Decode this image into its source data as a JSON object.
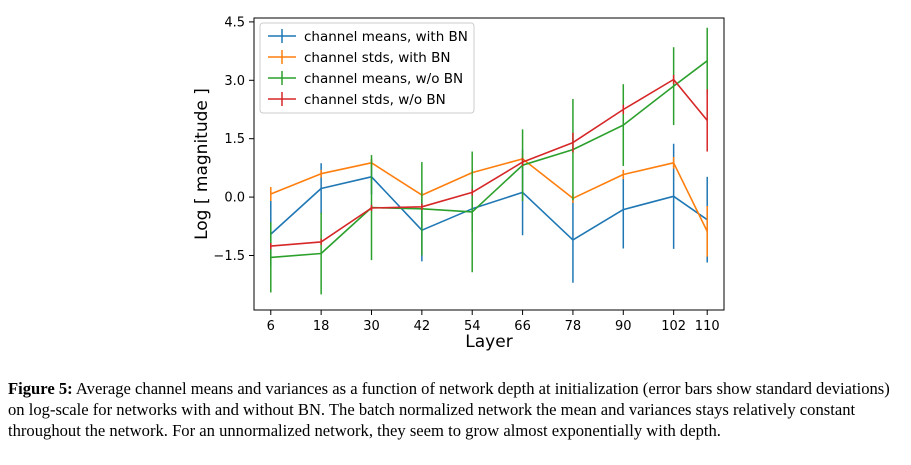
{
  "chart_data": {
    "type": "line",
    "title": "",
    "xlabel": "Layer",
    "ylabel": "Log [ magnitude ]",
    "categories": [
      "6",
      "18",
      "30",
      "42",
      "54",
      "66",
      "78",
      "90",
      "102",
      "110"
    ],
    "x": [
      6,
      18,
      30,
      42,
      54,
      66,
      78,
      90,
      102,
      110
    ],
    "xlim": [
      2,
      114
    ],
    "ylim": [
      -2.9,
      4.6
    ],
    "yticks": [
      -1.5,
      0.0,
      1.5,
      3.0,
      4.5
    ],
    "ytick_labels": [
      "−1.5",
      "0.0",
      "1.5",
      "3.0",
      "4.5"
    ],
    "grid": false,
    "legend_position": "top-left",
    "series": [
      {
        "name": "channel means, with BN",
        "color": "#1f77b4",
        "values": [
          -0.95,
          0.22,
          0.52,
          -0.85,
          -0.3,
          0.12,
          -1.1,
          -0.32,
          0.02,
          -0.58
        ],
        "errors": [
          0.85,
          0.65,
          0.45,
          0.8,
          0.6,
          1.1,
          1.1,
          1.0,
          1.35,
          1.1
        ]
      },
      {
        "name": "channel stds, with BN",
        "color": "#ff7f0e",
        "values": [
          0.08,
          0.6,
          0.88,
          0.05,
          0.63,
          0.98,
          -0.03,
          0.58,
          0.88,
          -0.88
        ],
        "errors": [
          0.18,
          0.1,
          0.1,
          0.1,
          0.1,
          0.12,
          0.12,
          0.12,
          0.15,
          0.65
        ]
      },
      {
        "name": "channel means, w/o BN",
        "color": "#2ca02c",
        "values": [
          -1.55,
          -1.45,
          -0.27,
          -0.3,
          -0.38,
          0.82,
          1.22,
          1.85,
          2.85,
          3.5
        ],
        "errors": [
          0.9,
          1.05,
          1.35,
          1.2,
          1.55,
          0.92,
          1.3,
          1.05,
          1.0,
          0.85
        ]
      },
      {
        "name": "channel stds, w/o BN",
        "color": "#d62728",
        "values": [
          -1.26,
          -1.15,
          -0.28,
          -0.25,
          0.12,
          0.9,
          1.4,
          2.25,
          3.02,
          1.97
        ],
        "errors": [
          0.08,
          0.08,
          0.08,
          0.08,
          0.08,
          0.1,
          0.25,
          0.12,
          0.12,
          0.8
        ]
      }
    ]
  },
  "caption": {
    "label": "Figure 5:",
    "text": " Average channel means and variances as a function of network depth at initialization (error bars show standard deviations) on log-scale for networks with and without BN. The batch normalized network the mean and variances stays relatively constant throughout the network. For an unnormalized network, they seem to grow almost exponentially with depth."
  }
}
